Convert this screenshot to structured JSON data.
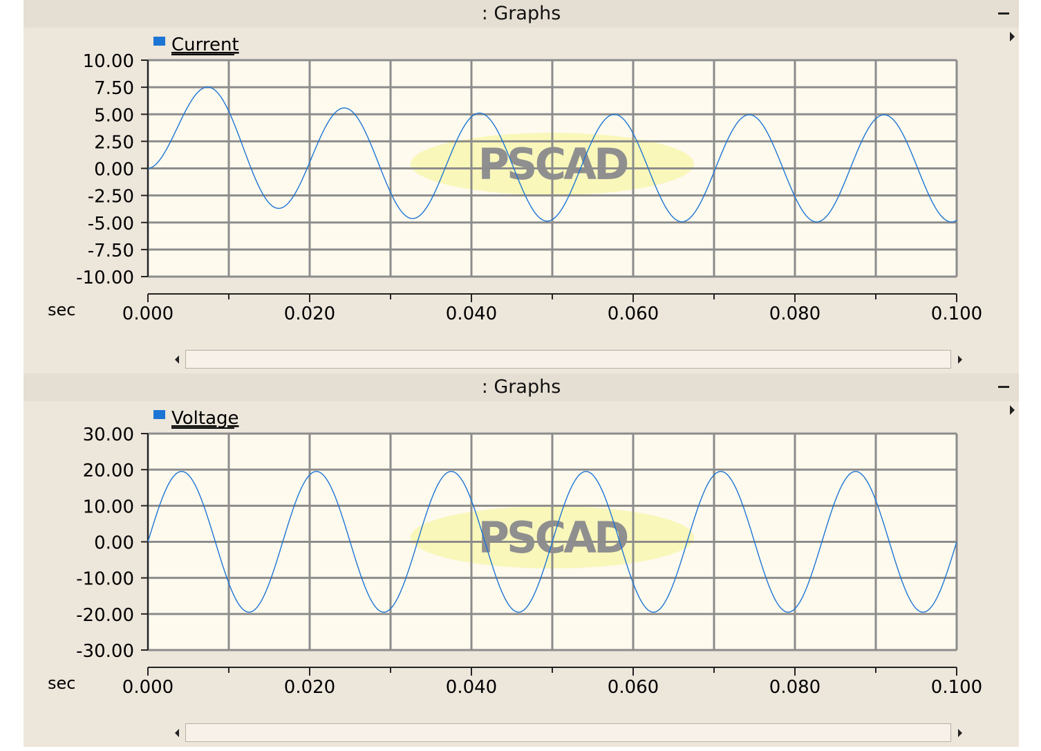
{
  "panels": [
    {
      "title": ": Graphs",
      "watermark": "PSCAD",
      "chart_data": {
        "type": "line",
        "xlabel": "sec",
        "xlim": [
          0,
          0.1
        ],
        "ylim": [
          -10,
          10
        ],
        "x_ticks": [
          "0.000",
          "0.020",
          "0.040",
          "0.060",
          "0.080",
          "0.100"
        ],
        "y_ticks": [
          "10.00",
          "7.50",
          "5.00",
          "2.50",
          "0.00",
          "-2.50",
          "-5.00",
          "-7.50",
          "-10.00"
        ],
        "grid": true,
        "legend_placement": "top-left",
        "series": [
          {
            "name": "Current",
            "color": "#1c74d4",
            "amplitude": 4.95,
            "frequency_hz": 60,
            "phase_lag_deg": 76,
            "dc_offset_initial": 4.8,
            "dc_decay_time_s": 0.012
          }
        ]
      }
    },
    {
      "title": ": Graphs",
      "watermark": "PSCAD",
      "chart_data": {
        "type": "line",
        "xlabel": "sec",
        "xlim": [
          0,
          0.1
        ],
        "ylim": [
          -30,
          30
        ],
        "x_ticks": [
          "0.000",
          "0.020",
          "0.040",
          "0.060",
          "0.080",
          "0.100"
        ],
        "y_ticks": [
          "30.00",
          "20.00",
          "10.00",
          "0.00",
          "-10.00",
          "-20.00",
          "-30.00"
        ],
        "grid": true,
        "legend_placement": "top-left",
        "series": [
          {
            "name": "Voltage",
            "color": "#1c74d4",
            "amplitude": 19.5,
            "frequency_hz": 60,
            "phase_lag_deg": 0,
            "dc_offset_initial": 0,
            "dc_decay_time_s": 0.012
          }
        ]
      }
    }
  ]
}
